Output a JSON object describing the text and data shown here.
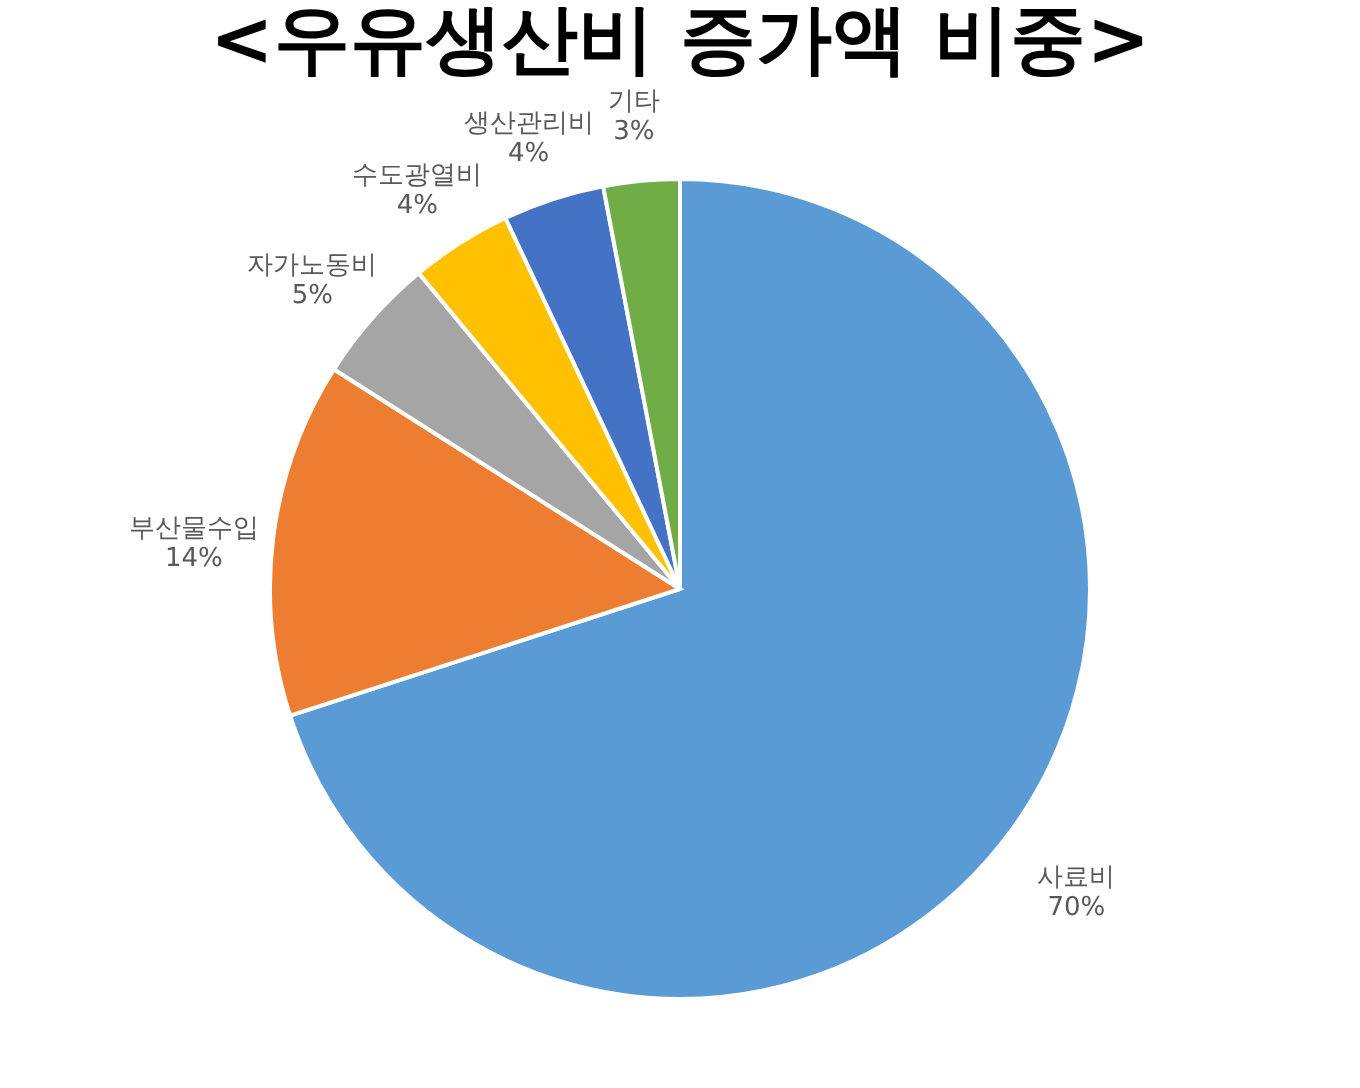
{
  "chart_data": {
    "type": "pie",
    "title": "<우유생산비 증가액 비중>",
    "categories": [
      "사료비",
      "부산물수입",
      "자가노동비",
      "수도광열비",
      "생산관리비",
      "기타"
    ],
    "values": [
      70,
      14,
      5,
      4,
      4,
      3
    ],
    "value_labels": [
      "70%",
      "14%",
      "5%",
      "4%",
      "4%",
      "3%"
    ],
    "colors": [
      "#5b9bd5",
      "#ed7d31",
      "#a5a5a5",
      "#ffc000",
      "#4472c4",
      "#70ad47"
    ],
    "legend": false
  }
}
